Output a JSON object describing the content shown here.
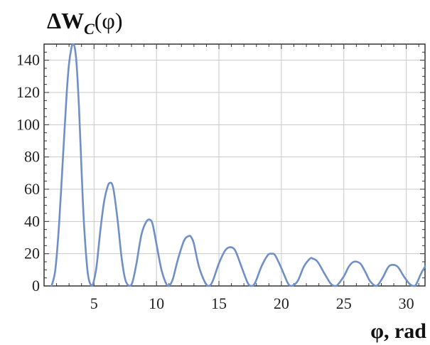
{
  "chart_data": {
    "type": "line",
    "title": "",
    "ylabel_prefix": "ΔW",
    "ylabel_sub": "C",
    "ylabel_suffix": "(φ)",
    "xlabel": "φ, rad",
    "xlim": [
      1.0,
      31.5
    ],
    "ylim": [
      0,
      150
    ],
    "xticks": [
      5,
      10,
      15,
      20,
      25,
      30
    ],
    "yticks": [
      0,
      20,
      40,
      60,
      80,
      100,
      120,
      140
    ],
    "grid": true,
    "line_color": "#6f8fc6",
    "series": [
      {
        "x": [
          1.6,
          1.9,
          2.2,
          2.5,
          2.8,
          3.0,
          3.2,
          3.3,
          3.45,
          3.6,
          3.8,
          4.0,
          4.2,
          4.5,
          4.8,
          4.95,
          5.2,
          5.5,
          5.8,
          6.1,
          6.3,
          6.45,
          6.6,
          6.9,
          7.2,
          7.5,
          7.85,
          8.1,
          8.4,
          8.8,
          9.2,
          9.5,
          9.7,
          10.0,
          10.4,
          10.8,
          11.0,
          11.3,
          11.7,
          12.2,
          12.6,
          12.8,
          13.0,
          13.4,
          13.9,
          14.2,
          14.5,
          15.0,
          15.5,
          15.9,
          16.3,
          16.8,
          17.3,
          17.6,
          17.9,
          18.4,
          18.9,
          19.2,
          19.5,
          20.0,
          20.5,
          20.8,
          21.3,
          21.8,
          22.3,
          22.5,
          22.9,
          23.5,
          24.0,
          24.4,
          25.0,
          25.4,
          25.8,
          26.3,
          26.7,
          27.1,
          27.6,
          28.1,
          28.5,
          28.8,
          29.3,
          29.8,
          30.3,
          30.7,
          31.2,
          31.5
        ],
        "y": [
          0,
          10,
          38,
          78,
          118,
          138,
          148,
          150,
          148,
          138,
          110,
          72,
          38,
          8,
          0,
          2,
          12,
          34,
          52,
          62,
          64,
          63,
          58,
          40,
          18,
          4,
          0,
          3,
          14,
          32,
          40,
          41,
          38,
          26,
          10,
          1,
          0,
          4,
          16,
          28,
          31,
          30,
          26,
          12,
          2,
          0,
          3,
          14,
          22,
          24,
          22,
          12,
          2,
          0,
          2,
          12,
          19,
          20,
          19,
          11,
          2,
          0,
          3,
          12,
          17,
          17,
          15,
          7,
          1,
          0,
          6,
          12,
          15,
          14,
          9,
          3,
          0,
          5,
          11,
          13,
          12,
          6,
          1,
          0,
          8,
          12
        ]
      }
    ]
  }
}
